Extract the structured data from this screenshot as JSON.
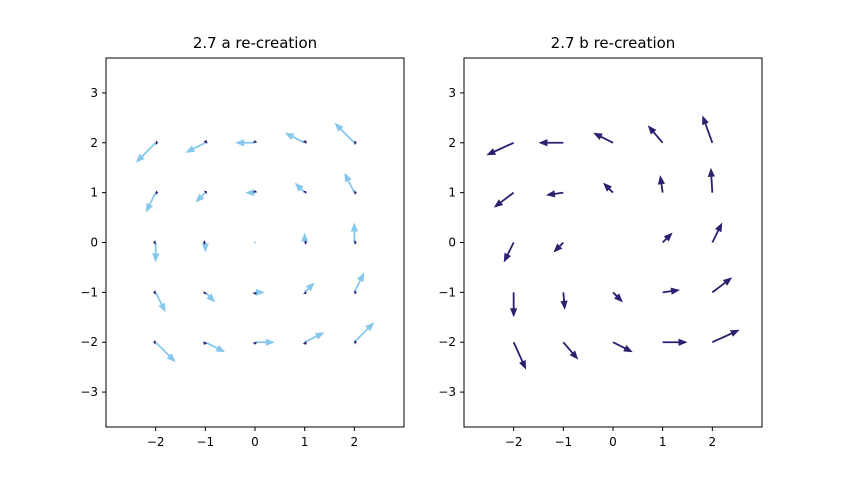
{
  "chart_data": [
    {
      "type": "quiver",
      "title": "2.7 a re-creation",
      "xlim": [
        -3,
        3
      ],
      "ylim": [
        -3.7,
        3.7
      ],
      "xticks": [
        -2,
        -1,
        0,
        1,
        2
      ],
      "yticks": [
        -3,
        -2,
        -1,
        0,
        1,
        2,
        3
      ],
      "grid": false,
      "arrow_colors": [
        "#86c8ec",
        "#2e1f6f"
      ],
      "layers": [
        {
          "color": "#86c8ec",
          "arrows": [
            {
              "x": -2,
              "y": 2,
              "u": -0.4,
              "v": -0.4
            },
            {
              "x": -1,
              "y": 2,
              "u": -0.4,
              "v": -0.2
            },
            {
              "x": 0,
              "y": 2,
              "u": -0.4,
              "v": 0
            },
            {
              "x": 1,
              "y": 2,
              "u": -0.4,
              "v": 0.2
            },
            {
              "x": 2,
              "y": 2,
              "u": -0.4,
              "v": 0.4
            },
            {
              "x": -2,
              "y": 1,
              "u": -0.2,
              "v": -0.4
            },
            {
              "x": -1,
              "y": 1,
              "u": -0.2,
              "v": -0.2
            },
            {
              "x": 0,
              "y": 1,
              "u": -0.2,
              "v": 0
            },
            {
              "x": 1,
              "y": 1,
              "u": -0.2,
              "v": 0.2
            },
            {
              "x": 2,
              "y": 1,
              "u": -0.2,
              "v": 0.4
            },
            {
              "x": -2,
              "y": 0,
              "u": 0,
              "v": -0.4
            },
            {
              "x": -1,
              "y": 0,
              "u": 0,
              "v": -0.2
            },
            {
              "x": 0,
              "y": 0,
              "u": 0,
              "v": 0
            },
            {
              "x": 1,
              "y": 0,
              "u": 0,
              "v": 0.2
            },
            {
              "x": 2,
              "y": 0,
              "u": 0,
              "v": 0.4
            },
            {
              "x": -2,
              "y": -1,
              "u": 0.2,
              "v": -0.4
            },
            {
              "x": -1,
              "y": -1,
              "u": 0.2,
              "v": -0.2
            },
            {
              "x": 0,
              "y": -1,
              "u": 0.2,
              "v": 0
            },
            {
              "x": 1,
              "y": -1,
              "u": 0.2,
              "v": 0.2
            },
            {
              "x": 2,
              "y": -1,
              "u": 0.2,
              "v": 0.4
            },
            {
              "x": -2,
              "y": -2,
              "u": 0.4,
              "v": -0.4
            },
            {
              "x": -1,
              "y": -2,
              "u": 0.4,
              "v": -0.2
            },
            {
              "x": 0,
              "y": -2,
              "u": 0.4,
              "v": 0
            },
            {
              "x": 1,
              "y": -2,
              "u": 0.4,
              "v": 0.2
            },
            {
              "x": 2,
              "y": -2,
              "u": 0.4,
              "v": 0.4
            }
          ]
        },
        {
          "color": "#2e1f6f",
          "arrows": [
            {
              "x": -2,
              "y": 2,
              "u": 0.05,
              "v": 0
            },
            {
              "x": -1,
              "y": 2,
              "u": 0.03,
              "v": 0.05
            },
            {
              "x": 0,
              "y": 2,
              "u": 0,
              "v": 0.05
            },
            {
              "x": 1,
              "y": 2,
              "u": 0.03,
              "v": 0.05
            },
            {
              "x": 2,
              "y": 2,
              "u": 0.05,
              "v": 0
            },
            {
              "x": -2,
              "y": 1,
              "u": 0.05,
              "v": 0
            },
            {
              "x": -1,
              "y": 1,
              "u": 0.03,
              "v": 0.03
            },
            {
              "x": 0,
              "y": 1,
              "u": 0,
              "v": 0.05
            },
            {
              "x": 1,
              "y": 1,
              "u": 0.03,
              "v": 0.03
            },
            {
              "x": 2,
              "y": 1,
              "u": 0.05,
              "v": 0
            },
            {
              "x": -2,
              "y": 0,
              "u": -0.05,
              "v": 0
            },
            {
              "x": -1,
              "y": 0,
              "u": -0.05,
              "v": 0
            },
            {
              "x": 1,
              "y": 0,
              "u": 0.05,
              "v": 0
            },
            {
              "x": 2,
              "y": 0,
              "u": 0.05,
              "v": 0
            },
            {
              "x": -2,
              "y": -1,
              "u": -0.05,
              "v": 0
            },
            {
              "x": -1,
              "y": -1,
              "u": -0.03,
              "v": -0.03
            },
            {
              "x": 0,
              "y": -1,
              "u": 0,
              "v": -0.05
            },
            {
              "x": 1,
              "y": -1,
              "u": 0.03,
              "v": -0.03
            },
            {
              "x": 2,
              "y": -1,
              "u": 0.05,
              "v": 0
            },
            {
              "x": -2,
              "y": -2,
              "u": -0.05,
              "v": 0
            },
            {
              "x": -1,
              "y": -2,
              "u": -0.03,
              "v": -0.05
            },
            {
              "x": 0,
              "y": -2,
              "u": 0,
              "v": -0.05
            },
            {
              "x": 1,
              "y": -2,
              "u": 0.03,
              "v": -0.05
            },
            {
              "x": 2,
              "y": -2,
              "u": 0.05,
              "v": 0
            }
          ]
        }
      ]
    },
    {
      "type": "quiver",
      "title": "2.7 b re-creation",
      "xlim": [
        -3,
        3
      ],
      "ylim": [
        -3.7,
        3.7
      ],
      "xticks": [
        -2,
        -1,
        0,
        1,
        2
      ],
      "yticks": [
        -3,
        -2,
        -1,
        0,
        1,
        2,
        3
      ],
      "grid": false,
      "arrow_colors": [
        "#2e1f6f"
      ],
      "layers": [
        {
          "color": "#2e1f6f",
          "arrows": [
            {
              "x": -2,
              "y": 2,
              "u": -0.55,
              "v": -0.25
            },
            {
              "x": -1,
              "y": 2,
              "u": -0.5,
              "v": 0
            },
            {
              "x": 0,
              "y": 2,
              "u": -0.4,
              "v": 0.2
            },
            {
              "x": 1,
              "y": 2,
              "u": -0.3,
              "v": 0.35
            },
            {
              "x": 2,
              "y": 2,
              "u": -0.2,
              "v": 0.55
            },
            {
              "x": -2,
              "y": 1,
              "u": -0.4,
              "v": -0.3
            },
            {
              "x": -1,
              "y": 1,
              "u": -0.35,
              "v": -0.05
            },
            {
              "x": 0,
              "y": 1,
              "u": -0.2,
              "v": 0.2
            },
            {
              "x": 1,
              "y": 1,
              "u": -0.05,
              "v": 0.35
            },
            {
              "x": 2,
              "y": 1,
              "u": -0.03,
              "v": 0.5
            },
            {
              "x": -2,
              "y": 0,
              "u": -0.2,
              "v": -0.4
            },
            {
              "x": -1,
              "y": 0,
              "u": -0.2,
              "v": -0.2
            },
            {
              "x": 1,
              "y": 0,
              "u": 0.2,
              "v": 0.2
            },
            {
              "x": 2,
              "y": 0,
              "u": 0.2,
              "v": 0.4
            },
            {
              "x": -2,
              "y": -1,
              "u": 0,
              "v": -0.5
            },
            {
              "x": -1,
              "y": -1,
              "u": 0.03,
              "v": -0.35
            },
            {
              "x": 0,
              "y": -1,
              "u": 0.2,
              "v": -0.2
            },
            {
              "x": 1,
              "y": -1,
              "u": 0.35,
              "v": 0.05
            },
            {
              "x": 2,
              "y": -1,
              "u": 0.4,
              "v": 0.3
            },
            {
              "x": -2,
              "y": -2,
              "u": 0.25,
              "v": -0.55
            },
            {
              "x": -1,
              "y": -2,
              "u": 0.3,
              "v": -0.35
            },
            {
              "x": 0,
              "y": -2,
              "u": 0.4,
              "v": -0.2
            },
            {
              "x": 1,
              "y": -2,
              "u": 0.5,
              "v": 0
            },
            {
              "x": 2,
              "y": -2,
              "u": 0.55,
              "v": 0.25
            }
          ]
        }
      ]
    }
  ]
}
